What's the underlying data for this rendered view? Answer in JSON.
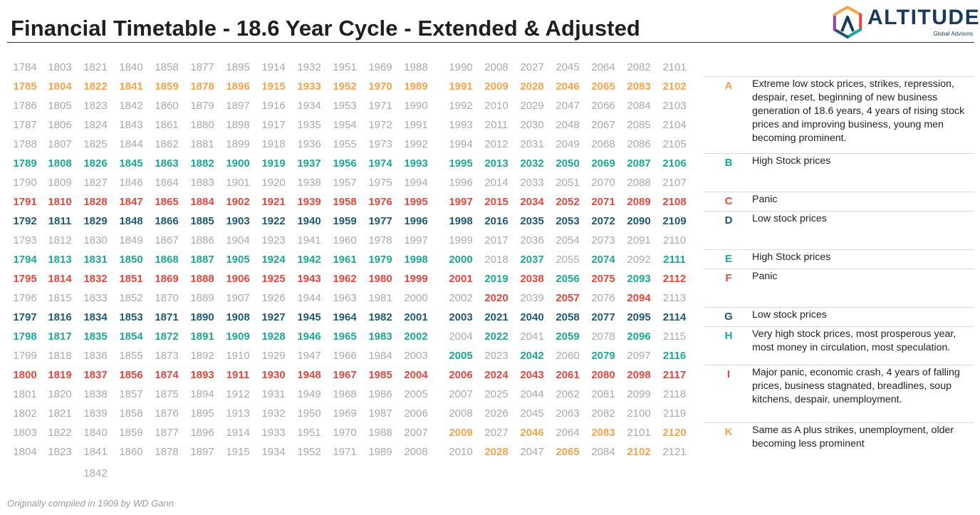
{
  "title": "Financial Timetable - 18.6 Year Cycle - Extended & Adjusted",
  "logo": {
    "name": "ALTITUDE",
    "tagline": "Global Advisors",
    "colors": [
      "#f5a54a",
      "#e8453c",
      "#1aaa93",
      "#1d5a78",
      "#8e44ad"
    ]
  },
  "footer": "Originally compiled in 1909 by WD Gann",
  "colors": {
    "A": "#f5a54a",
    "B": "#1aaa93",
    "C": "#e8453c",
    "D": "#1d5a78",
    "none": "#a9a9a9"
  },
  "year_grid": {
    "first_row_years": [
      1784,
      1803,
      1821,
      1840,
      1858,
      1877,
      1895,
      1914,
      1932,
      1951,
      1969,
      1988,
      1990,
      2008,
      2027,
      2045,
      2064,
      2082,
      2101
    ],
    "row_colors": [
      "nnnnnnnnnnnnnnnnnnn",
      "AAAAAAAAAAAAAAAAAAA",
      "nnnnnnnnnnnnnnnnnnn",
      "nnnnnnnnnnnnnnnnnnn",
      "nnnnnnnnnnnnnnnnnnn",
      "BBBBBBBBBBBBBBBBBBB",
      "nnnnnnnnnnnnnnnnnnn",
      "CCCCCCCCCCCCCCCCCCC",
      "DDDDDDDDDDDDDDDDDDD",
      "nnnnnnnnnnnnnnnnnnn",
      "BBBBBBBBBBBBBnBnBnB",
      "CCCCCCCCCCCCCBCBCBC",
      "nnnnnnnnnnnnnCnCnCn",
      "DDDDDDDDDDDDDDDDDDD",
      "BBBBBBBBBBBBnBnBnBn",
      "nnnnnnnnnnnnBnBnBnB",
      "CCCCCCCCCCCCCCCCCCC",
      "nnnnnnnnnnnnnnnnnnn",
      "nnnnnnnnnnnnnnnnnnn",
      "nnnnnnnnnnnnAnAnAnA",
      "nnnnnnnnnnnnnAnAnAn"
    ],
    "extra": {
      "value": 1842,
      "column": 2
    }
  },
  "legend": [
    {
      "letter": "A",
      "color": "#f5a54a",
      "lines": [
        "Extreme low stock prices, strikes, repression,",
        "despair, reset, beginning of new business",
        "generation of 18.6 years, 4 years of rising stock",
        "prices and improving business, young men",
        "becoming prominent."
      ]
    },
    {
      "letter": "B",
      "color": "#1aaa93",
      "lines": [
        "High Stock prices"
      ]
    },
    {
      "letter": "C",
      "color": "#e8453c",
      "lines": [
        "Panic"
      ]
    },
    {
      "letter": "D",
      "color": "#1d5a78",
      "lines": [
        "Low stock prices"
      ]
    },
    {
      "letter": "E",
      "color": "#1aaa93",
      "lines": [
        "High Stock prices"
      ]
    },
    {
      "letter": "F",
      "color": "#e8453c",
      "lines": [
        "Panic"
      ]
    },
    {
      "letter": "G",
      "color": "#1d5a78",
      "lines": [
        "Low stock prices"
      ]
    },
    {
      "letter": "H",
      "color": "#1aaa93",
      "lines": [
        "Very high stock prices, most prosperous year,",
        "most money in circulation, most speculation."
      ]
    },
    {
      "letter": "I",
      "color": "#e8453c",
      "lines": [
        "Major panic, economic crash, 4 years of falling",
        "prices, business stagnated, breadlines, soup",
        "kitchens, despair, unemployment."
      ]
    },
    {
      "letter": "K",
      "color": "#f5a54a",
      "lines": [
        "Same as A plus strikes, unemployment, older",
        "becoming less prominent"
      ]
    }
  ]
}
